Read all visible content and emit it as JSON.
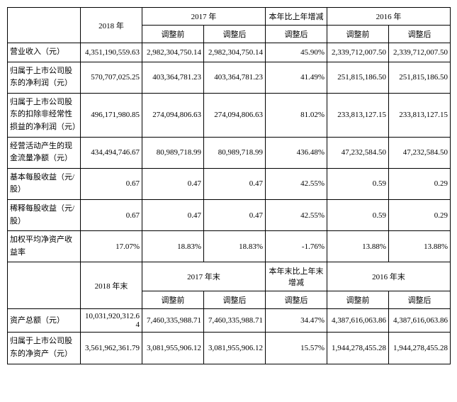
{
  "headers_top": {
    "y2018": "2018 年",
    "y2017": "2017 年",
    "change": "本年比上年增减",
    "y2016": "2016 年",
    "before": "调整前",
    "after": "调整后",
    "y2018_end": "2018 年末",
    "y2017_end": "2017 年末",
    "change_end": "本年末比上年末增减",
    "y2016_end": "2016 年末"
  },
  "rows": [
    {
      "label": "营业收入（元）",
      "y2018": "4,351,190,559.63",
      "y2017_before": "2,982,304,750.14",
      "y2017_after": "2,982,304,750.14",
      "change": "45.90%",
      "y2016_before": "2,339,712,007.50",
      "y2016_after": "2,339,712,007.50"
    },
    {
      "label": "归属于上市公司股东的净利润（元）",
      "y2018": "570,707,025.25",
      "y2017_before": "403,364,781.23",
      "y2017_after": "403,364,781.23",
      "change": "41.49%",
      "y2016_before": "251,815,186.50",
      "y2016_after": "251,815,186.50"
    },
    {
      "label": "归属于上市公司股东的扣除非经常性损益的净利润（元）",
      "y2018": "496,171,980.85",
      "y2017_before": "274,094,806.63",
      "y2017_after": "274,094,806.63",
      "change": "81.02%",
      "y2016_before": "233,813,127.15",
      "y2016_after": "233,813,127.15"
    },
    {
      "label": "经营活动产生的现金流量净额（元）",
      "y2018": "434,494,746.67",
      "y2017_before": "80,989,718.99",
      "y2017_after": "80,989,718.99",
      "change": "436.48%",
      "y2016_before": "47,232,584.50",
      "y2016_after": "47,232,584.50"
    },
    {
      "label": "基本每股收益（元/股）",
      "y2018": "0.67",
      "y2017_before": "0.47",
      "y2017_after": "0.47",
      "change": "42.55%",
      "y2016_before": "0.59",
      "y2016_after": "0.29"
    },
    {
      "label": "稀释每股收益（元/股）",
      "y2018": "0.67",
      "y2017_before": "0.47",
      "y2017_after": "0.47",
      "change": "42.55%",
      "y2016_before": "0.59",
      "y2016_after": "0.29"
    },
    {
      "label": "加权平均净资产收益率",
      "y2018": "17.07%",
      "y2017_before": "18.83%",
      "y2017_after": "18.83%",
      "change": "-1.76%",
      "y2016_before": "13.88%",
      "y2016_after": "13.88%"
    }
  ],
  "rows_end": [
    {
      "label": "资产总额（元）",
      "y2018": "10,031,920,312.64",
      "y2017_before": "7,460,335,988.71",
      "y2017_after": "7,460,335,988.71",
      "change": "34.47%",
      "y2016_before": "4,387,616,063.86",
      "y2016_after": "4,387,616,063.86"
    },
    {
      "label": "归属于上市公司股东的净资产（元）",
      "y2018": "3,561,962,361.79",
      "y2017_before": "3,081,955,906.12",
      "y2017_after": "3,081,955,906.12",
      "change": "15.57%",
      "y2016_before": "1,944,278,455.28",
      "y2016_after": "1,944,278,455.28"
    }
  ],
  "style": {
    "border_color": "#000000",
    "bg_color": "#ffffff",
    "font_size": 11
  }
}
